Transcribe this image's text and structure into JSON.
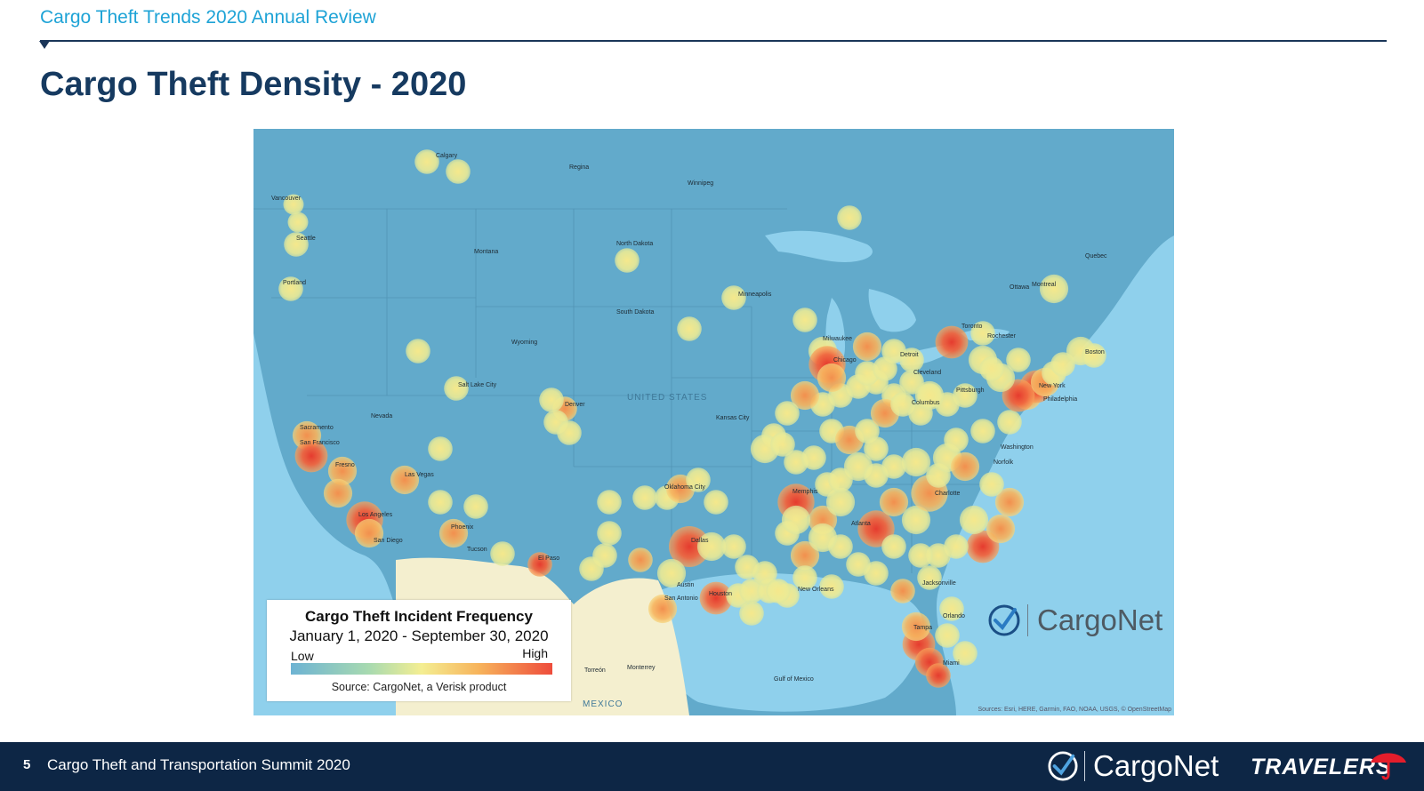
{
  "header": {
    "kicker": "Cargo Theft Trends 2020 Annual Review",
    "title": "Cargo Theft Density - 2020"
  },
  "map": {
    "legend": {
      "title": "Cargo Theft  Incident Frequency",
      "subtitle": "January 1, 2020 - September 30, 2020",
      "low_label": "Low",
      "high_label": "High",
      "source": "Source: CargoNet, a Verisk product"
    },
    "logo_text": "CargoNet",
    "attribution": "Sources: Esri, HERE, Garmin, FAO, NOAA, USGS, © OpenStreetMap",
    "colors": {
      "ocean": "#8fd0ec",
      "land": "#62aacb",
      "mexico": "#f4efcf",
      "low": "#6db3d3",
      "mid": "#f4ee92",
      "high": "#ee4c3c"
    },
    "labels": [
      {
        "name": "Calgary"
      },
      {
        "name": "Regina"
      },
      {
        "name": "Winnipeg"
      },
      {
        "name": "Vancouver"
      },
      {
        "name": "Seattle"
      },
      {
        "name": "Portland"
      },
      {
        "name": "Montana"
      },
      {
        "name": "North Dakota"
      },
      {
        "name": "South Dakota"
      },
      {
        "name": "Minneapolis"
      },
      {
        "name": "Wyoming"
      },
      {
        "name": "Salt Lake City"
      },
      {
        "name": "Denver"
      },
      {
        "name": "Nevada"
      },
      {
        "name": "Sacramento"
      },
      {
        "name": "San Francisco"
      },
      {
        "name": "Fresno"
      },
      {
        "name": "Las Vegas"
      },
      {
        "name": "Los Angeles"
      },
      {
        "name": "San Diego"
      },
      {
        "name": "Phoenix"
      },
      {
        "name": "Tucson"
      },
      {
        "name": "El Paso"
      },
      {
        "name": "Kansas City"
      },
      {
        "name": "Oklahoma City"
      },
      {
        "name": "Dallas"
      },
      {
        "name": "Austin"
      },
      {
        "name": "San Antonio"
      },
      {
        "name": "Houston"
      },
      {
        "name": "New Orleans"
      },
      {
        "name": "Memphis"
      },
      {
        "name": "Atlanta"
      },
      {
        "name": "Charlotte"
      },
      {
        "name": "Jacksonville"
      },
      {
        "name": "Orlando"
      },
      {
        "name": "Tampa"
      },
      {
        "name": "Miami"
      },
      {
        "name": "Chicago"
      },
      {
        "name": "Milwaukee"
      },
      {
        "name": "Detroit"
      },
      {
        "name": "Cleveland"
      },
      {
        "name": "Columbus"
      },
      {
        "name": "Pittsburgh"
      },
      {
        "name": "Toronto"
      },
      {
        "name": "Rochester"
      },
      {
        "name": "Ottawa"
      },
      {
        "name": "Montreal"
      },
      {
        "name": "Boston"
      },
      {
        "name": "New York"
      },
      {
        "name": "Philadelphia"
      },
      {
        "name": "Washington"
      },
      {
        "name": "Norfolk"
      },
      {
        "name": "Torreón"
      },
      {
        "name": "Monterrey"
      },
      {
        "name": "MEXICO"
      },
      {
        "name": "UNITED STATES"
      },
      {
        "name": "Gulf of Mexico"
      },
      {
        "name": "Quebec"
      }
    ]
  },
  "footer": {
    "page_number": "5",
    "summit": "Cargo Theft and Transportation Summit 2020",
    "cargonet": "CargoNet",
    "travelers": "TRAVELERS"
  }
}
